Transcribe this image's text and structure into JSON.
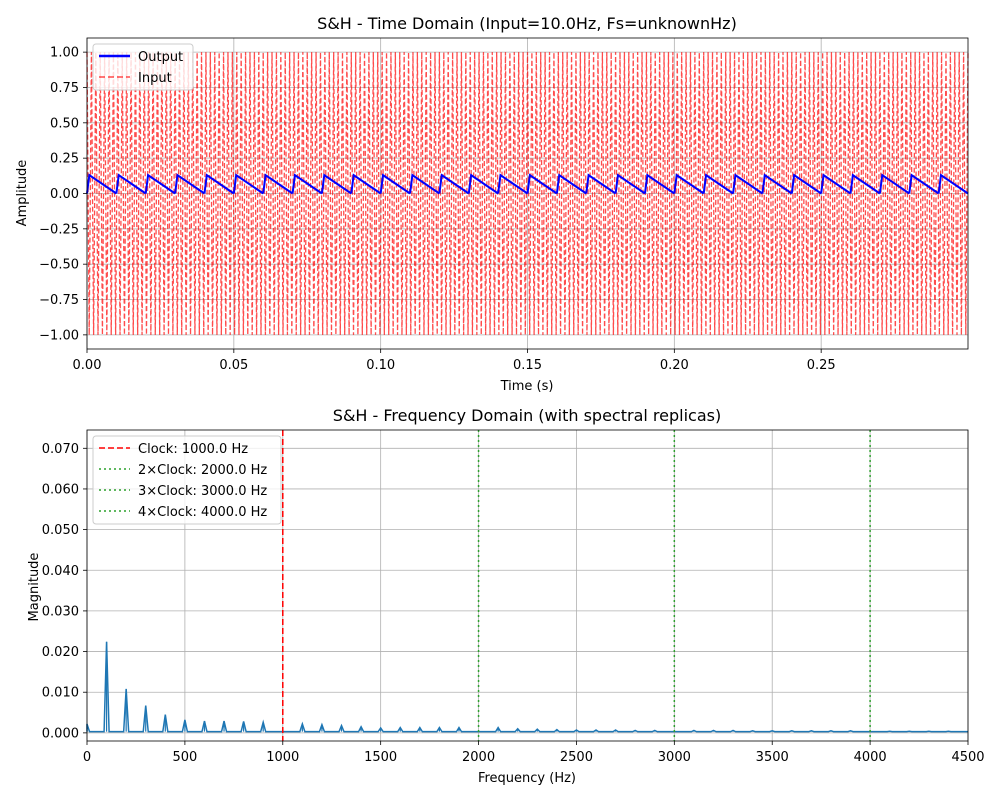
{
  "chart_data": [
    {
      "type": "line",
      "title": "S&H - Time Domain (Input=10.0Hz, Fs=unknownHz)",
      "xlabel": "Time (s)",
      "ylabel": "Amplitude",
      "xlim": [
        0,
        0.3
      ],
      "ylim": [
        -1.1,
        1.1
      ],
      "xticks": [
        0.0,
        0.05,
        0.1,
        0.15,
        0.2,
        0.25
      ],
      "xtick_labels": [
        "0.00",
        "0.05",
        "0.10",
        "0.15",
        "0.20",
        "0.25"
      ],
      "yticks": [
        -1.0,
        -0.75,
        -0.5,
        -0.25,
        0.0,
        0.25,
        0.5,
        0.75,
        1.0
      ],
      "ytick_labels": [
        "−1.00",
        "−0.75",
        "−0.50",
        "−0.25",
        "0.00",
        "0.25",
        "0.50",
        "0.75",
        "1.00"
      ],
      "grid": true,
      "legend_position": "upper left",
      "series": [
        {
          "name": "Output",
          "color": "#0000ff",
          "style": "solid",
          "sawtooth_period": 0.01,
          "sawtooth_peak": 0.13,
          "sawtooth_min": 0.0
        },
        {
          "name": "Input",
          "color": "#ff0000",
          "style": "dashed",
          "amplitude": 1.0,
          "oscillation_count": 200
        }
      ]
    },
    {
      "type": "line",
      "title": "S&H - Frequency Domain (with spectral replicas)",
      "xlabel": "Frequency (Hz)",
      "ylabel": "Magnitude",
      "xlim": [
        0,
        4500
      ],
      "ylim": [
        -0.002,
        0.0745
      ],
      "xticks": [
        0,
        500,
        1000,
        1500,
        2000,
        2500,
        3000,
        3500,
        4000,
        4500
      ],
      "xtick_labels": [
        "0",
        "500",
        "1000",
        "1500",
        "2000",
        "2500",
        "3000",
        "3500",
        "4000",
        "4500"
      ],
      "yticks": [
        0.0,
        0.01,
        0.02,
        0.03,
        0.04,
        0.05,
        0.06,
        0.07
      ],
      "ytick_labels": [
        "0.000",
        "0.010",
        "0.020",
        "0.030",
        "0.040",
        "0.050",
        "0.060",
        "0.070"
      ],
      "grid": true,
      "legend_position": "upper left",
      "spectrum_color": "#1f77b4",
      "peaks": {
        "x": [
          0,
          100,
          200,
          300,
          400,
          500,
          600,
          700,
          800,
          900,
          1100,
          1200,
          1300,
          1400,
          1500,
          1600,
          1700,
          1800,
          1900,
          2100,
          2200,
          2300,
          2400,
          2500,
          2600,
          2700,
          2800,
          2900,
          3100,
          3200,
          3300,
          3400,
          3500,
          3600,
          3700,
          3800,
          3900,
          4100,
          4200,
          4300,
          4400
        ],
        "y": [
          0.0022,
          0.0224,
          0.0108,
          0.0067,
          0.0045,
          0.0032,
          0.0029,
          0.0029,
          0.0028,
          0.0026,
          0.0022,
          0.002,
          0.0018,
          0.0015,
          0.0012,
          0.0013,
          0.0013,
          0.0013,
          0.0013,
          0.0013,
          0.001,
          0.0009,
          0.0008,
          0.0007,
          0.0007,
          0.0007,
          0.0006,
          0.0006,
          0.0006,
          0.0006,
          0.0006,
          0.0005,
          0.0005,
          0.0005,
          0.0005,
          0.0005,
          0.0005,
          0.0004,
          0.0004,
          0.0004,
          0.0004
        ]
      },
      "vlines": [
        {
          "name": "Clock: 1000.0 Hz",
          "x": 1000,
          "color": "#ff0000",
          "style": "dashed"
        },
        {
          "name": "2×Clock: 2000.0 Hz",
          "x": 2000,
          "color": "#2ca02c",
          "style": "dotted"
        },
        {
          "name": "3×Clock: 3000.0 Hz",
          "x": 3000,
          "color": "#2ca02c",
          "style": "dotted"
        },
        {
          "name": "4×Clock: 4000.0 Hz",
          "x": 4000,
          "color": "#2ca02c",
          "style": "dotted"
        }
      ]
    }
  ]
}
